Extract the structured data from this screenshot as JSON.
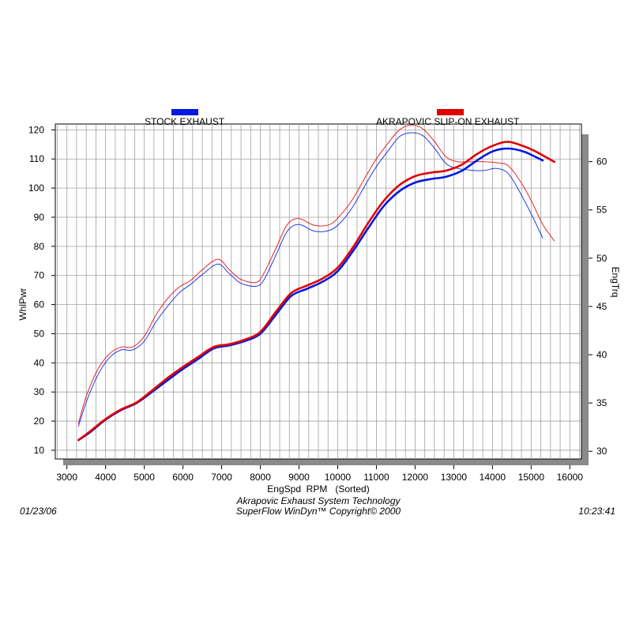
{
  "chart_data": {
    "type": "line",
    "title": "",
    "xlabel": "EngSpd  RPM   (Sorted)",
    "ylabel_left": "WhlPwr",
    "ylabel_right": "EngTrq",
    "xlim": [
      2700,
      16300
    ],
    "ylim_left": [
      7,
      122
    ],
    "ylim_right": [
      29.2,
      63.9
    ],
    "x_ticks": [
      3000,
      4000,
      5000,
      6000,
      7000,
      8000,
      9000,
      10000,
      11000,
      12000,
      13000,
      14000,
      15000,
      16000
    ],
    "y_ticks_left": [
      10,
      20,
      30,
      40,
      50,
      60,
      70,
      80,
      90,
      100,
      110,
      120
    ],
    "y_ticks_right": [
      30,
      35,
      40,
      45,
      50,
      55,
      60
    ],
    "grid": true,
    "legend": [
      {
        "name": "STOCK EXHAUST",
        "color": "#0018e0"
      },
      {
        "name": "AKRAPOVIC SLIP-ON EXHAUST",
        "color": "#e00000"
      }
    ],
    "series": [
      {
        "name": "STOCK EXHAUST",
        "measure": "WhlPwr",
        "axis": "left",
        "color": "#0018e0",
        "x": [
          3300,
          3600,
          4000,
          4400,
          4800,
          5200,
          5600,
          6000,
          6400,
          6800,
          7200,
          7600,
          8000,
          8400,
          8800,
          9200,
          9600,
          10000,
          10400,
          10800,
          11200,
          11600,
          12000,
          12400,
          12800,
          13200,
          13600,
          14000,
          14400,
          14800,
          15100,
          15300
        ],
        "y": [
          13.5,
          16.2,
          20.5,
          23.8,
          26.2,
          30.0,
          34.0,
          37.9,
          41.4,
          45.0,
          46.0,
          47.5,
          50.0,
          56.5,
          63.0,
          65.4,
          67.8,
          71.5,
          78.5,
          86.5,
          94.0,
          99.0,
          101.9,
          103.1,
          103.9,
          105.9,
          109.5,
          112.6,
          113.6,
          112.6,
          110.8,
          109.5
        ]
      },
      {
        "name": "AKRAPOVIC SLIP-ON EXHAUST",
        "measure": "WhlPwr",
        "axis": "left",
        "color": "#e00000",
        "x": [
          3300,
          3600,
          4000,
          4400,
          4800,
          5200,
          5600,
          6000,
          6400,
          6800,
          7200,
          7600,
          8000,
          8400,
          8800,
          9200,
          9600,
          10000,
          10400,
          10800,
          11200,
          11600,
          12000,
          12400,
          12800,
          13200,
          13600,
          14000,
          14400,
          14800,
          15100,
          15400,
          15600
        ],
        "y": [
          13.5,
          16.5,
          20.7,
          24.0,
          26.4,
          30.5,
          34.8,
          38.6,
          42.1,
          45.5,
          46.4,
          48.0,
          50.6,
          57.5,
          64.0,
          66.5,
          68.9,
          72.7,
          79.8,
          88.3,
          95.8,
          101.1,
          104.1,
          105.3,
          106.0,
          108.0,
          111.7,
          114.5,
          115.9,
          114.4,
          112.7,
          110.5,
          109.0
        ]
      },
      {
        "name": "STOCK EXHAUST",
        "measure": "EngTrq",
        "axis": "right",
        "color": "#0018e0",
        "x": [
          3300,
          3500,
          3800,
          4100,
          4400,
          4700,
          5000,
          5300,
          5600,
          5900,
          6200,
          6500,
          6900,
          7200,
          7500,
          7900,
          8100,
          8400,
          8700,
          9000,
          9400,
          9800,
          10100,
          10400,
          10700,
          11000,
          11300,
          11600,
          11900,
          12200,
          12500,
          12800,
          13100,
          13500,
          13800,
          14100,
          14400,
          14700,
          15000,
          15300
        ],
        "y": [
          32.6,
          35.1,
          37.9,
          39.7,
          40.5,
          40.5,
          41.4,
          43.4,
          45.0,
          46.4,
          47.3,
          48.3,
          49.4,
          48.4,
          47.4,
          47.1,
          47.8,
          50.3,
          52.8,
          53.5,
          52.8,
          52.9,
          53.8,
          55.4,
          57.5,
          59.5,
          61.1,
          62.6,
          63.0,
          62.7,
          61.4,
          59.8,
          59.3,
          59.1,
          59.1,
          59.3,
          58.8,
          56.9,
          54.6,
          52.1
        ]
      },
      {
        "name": "AKRAPOVIC SLIP-ON EXHAUST",
        "measure": "EngTrq",
        "axis": "right",
        "color": "#e00000",
        "x": [
          3300,
          3500,
          3800,
          4100,
          4400,
          4700,
          5000,
          5300,
          5600,
          5900,
          6200,
          6500,
          6900,
          7200,
          7500,
          7900,
          8100,
          8400,
          8700,
          9000,
          9400,
          9800,
          10100,
          10400,
          10700,
          11000,
          11300,
          11600,
          11900,
          12200,
          12500,
          12800,
          13100,
          13500,
          13800,
          14100,
          14400,
          14700,
          15000,
          15300,
          15600
        ],
        "y": [
          32.9,
          35.7,
          38.5,
          40.1,
          40.8,
          40.8,
          41.9,
          44.1,
          45.8,
          47.0,
          47.7,
          48.8,
          49.9,
          48.8,
          47.8,
          47.5,
          48.5,
          51.0,
          53.5,
          54.1,
          53.4,
          53.5,
          54.6,
          56.2,
          58.3,
          60.3,
          61.9,
          63.3,
          63.8,
          63.4,
          62.1,
          60.5,
          60.0,
          60.0,
          60.0,
          59.9,
          59.6,
          58.1,
          56.0,
          53.5,
          51.8
        ]
      }
    ]
  },
  "footer": {
    "date": "01/23/06",
    "line1": "Akrapovic Exhaust System Technology",
    "line2": "SuperFlow WinDyn™  Copyright© 2000",
    "time": "10:23:41"
  }
}
